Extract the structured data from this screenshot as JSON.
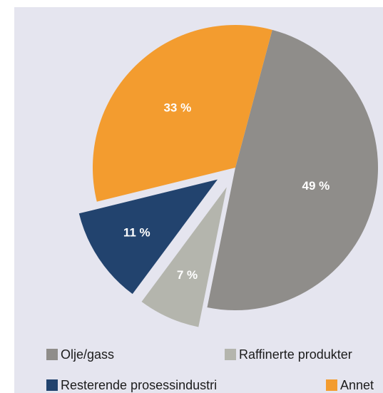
{
  "chart_data": {
    "type": "pie",
    "categories": [
      "Olje/gass",
      "Raffinerte produkter",
      "Resterende prosessindustri",
      "Annet"
    ],
    "values": [
      49,
      7,
      11,
      33
    ],
    "value_labels": [
      "49 %",
      "7 %",
      "11 %",
      "33 %"
    ],
    "colors": [
      "#8f8d8a",
      "#b4b5ad",
      "#22436e",
      "#f39c2f"
    ],
    "exploded": [
      false,
      true,
      true,
      false
    ],
    "legend": "bottom"
  }
}
